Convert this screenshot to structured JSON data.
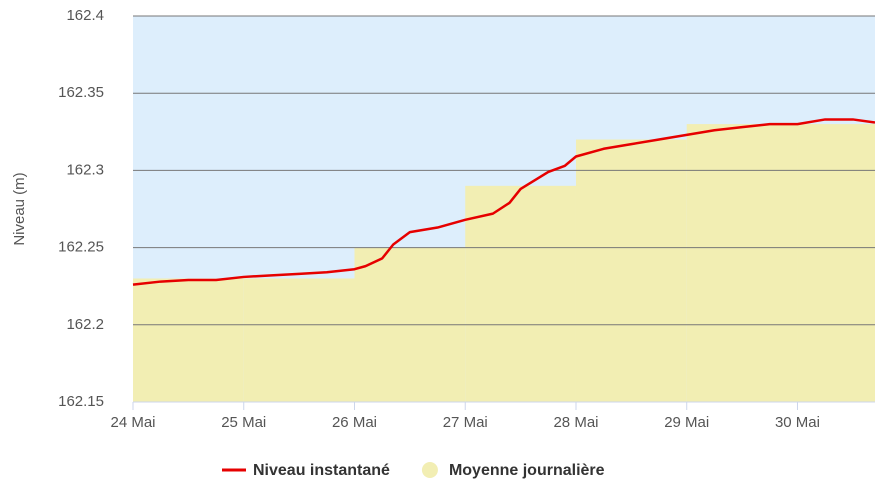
{
  "chart_data": {
    "type": "line",
    "y_label": "Niveau (m)",
    "xlim": [
      24,
      30.7
    ],
    "xticks": [
      {
        "value": 24,
        "label": "24 Mai"
      },
      {
        "value": 25,
        "label": "25 Mai"
      },
      {
        "value": 26,
        "label": "26 Mai"
      },
      {
        "value": 27,
        "label": "27 Mai"
      },
      {
        "value": 28,
        "label": "28 Mai"
      },
      {
        "value": 29,
        "label": "29 Mai"
      },
      {
        "value": 30,
        "label": "30 Mai"
      }
    ],
    "ylim": [
      162.15,
      162.4
    ],
    "yticks": [
      162.15,
      162.2,
      162.25,
      162.3,
      162.35,
      162.4
    ],
    "grid": true,
    "series": [
      {
        "name": "Niveau instantané",
        "type": "line",
        "color": "#e60000",
        "x": [
          24,
          24.25,
          24.5,
          24.75,
          25,
          25.25,
          25.5,
          25.75,
          26,
          26.1,
          26.25,
          26.35,
          26.5,
          26.75,
          27,
          27.25,
          27.4,
          27.5,
          27.75,
          27.9,
          28,
          28.25,
          28.5,
          28.75,
          29,
          29.25,
          29.5,
          29.75,
          30,
          30.25,
          30.5,
          30.7
        ],
        "values": [
          162.226,
          162.228,
          162.229,
          162.229,
          162.231,
          162.232,
          162.233,
          162.234,
          162.236,
          162.238,
          162.243,
          162.252,
          162.26,
          162.263,
          162.268,
          162.272,
          162.279,
          162.288,
          162.299,
          162.303,
          162.309,
          162.314,
          162.317,
          162.32,
          162.323,
          162.326,
          162.328,
          162.33,
          162.33,
          162.333,
          162.333,
          162.331
        ]
      },
      {
        "name": "Moyenne journalière",
        "type": "step-area",
        "color": "#f2eeb3",
        "x": [
          24,
          25,
          26,
          27,
          28,
          29,
          30
        ],
        "values": [
          162.23,
          162.23,
          162.25,
          162.29,
          162.32,
          162.33,
          162.33
        ]
      }
    ]
  }
}
